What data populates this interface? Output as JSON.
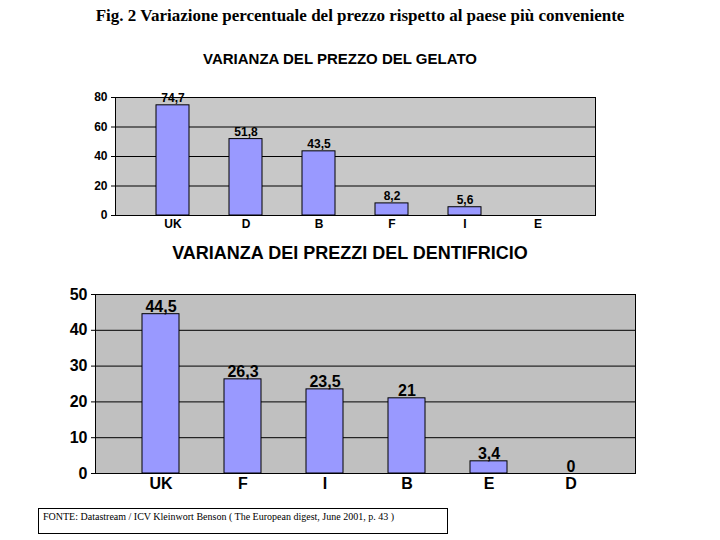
{
  "title": "Fig. 2 Variazione percentuale del prezzo rispetto al paese più conveniente",
  "source": "FONTE: Datastream / ICV Kleinwort Benson ( The European digest, June 2001, p. 43 )",
  "chart_data": [
    {
      "type": "bar",
      "title": "VARIANZA DEL PREZZO DEL GELATO",
      "categories": [
        "UK",
        "D",
        "B",
        "F",
        "I",
        "E"
      ],
      "values": [
        74.7,
        51.8,
        43.5,
        8.2,
        5.6,
        0
      ],
      "value_labels": [
        "74,7",
        "51,8",
        "43,5",
        "8,2",
        "5,6",
        null
      ],
      "color": "#9999ff",
      "ylim": [
        0,
        80
      ],
      "yticks": [
        0,
        20,
        40,
        60,
        80
      ],
      "grid": true,
      "data_labels": true
    },
    {
      "type": "bar",
      "title": "VARIANZA DEI PREZZI DEL DENTIFRICIO",
      "categories": [
        "UK",
        "F",
        "I",
        "B",
        "E",
        "D"
      ],
      "values": [
        44.5,
        26.3,
        23.5,
        21,
        3.4,
        0
      ],
      "value_labels": [
        "44,5",
        "26,3",
        "23,5",
        "21",
        "3,4",
        "0"
      ],
      "color": "#9999ff",
      "ylim": [
        0,
        50
      ],
      "yticks": [
        0,
        10,
        20,
        30,
        40,
        50
      ],
      "grid": true,
      "data_labels": true
    }
  ]
}
